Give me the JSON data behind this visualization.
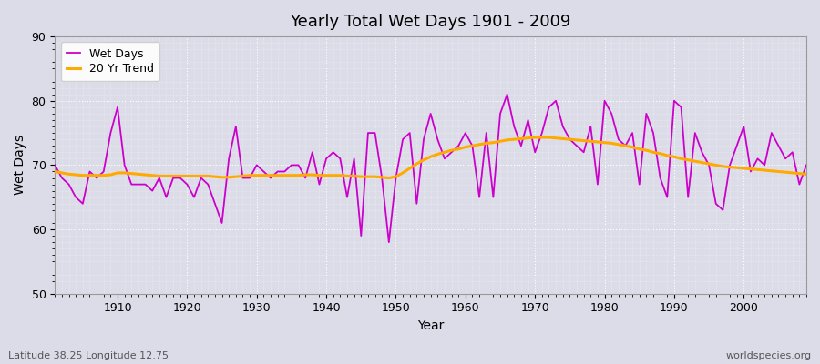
{
  "title": "Yearly Total Wet Days 1901 - 2009",
  "xlabel": "Year",
  "ylabel": "Wet Days",
  "subtitle_left": "Latitude 38.25 Longitude 12.75",
  "subtitle_right": "worldspecies.org",
  "line_color": "#cc00cc",
  "trend_color": "#ffaa00",
  "bg_color": "#dcdce8",
  "plot_bg_color": "#dcdce8",
  "years": [
    1901,
    1902,
    1903,
    1904,
    1905,
    1906,
    1907,
    1908,
    1909,
    1910,
    1911,
    1912,
    1913,
    1914,
    1915,
    1916,
    1917,
    1918,
    1919,
    1920,
    1921,
    1922,
    1923,
    1924,
    1925,
    1926,
    1927,
    1928,
    1929,
    1930,
    1931,
    1932,
    1933,
    1934,
    1935,
    1936,
    1937,
    1938,
    1939,
    1940,
    1941,
    1942,
    1943,
    1944,
    1945,
    1946,
    1947,
    1948,
    1949,
    1950,
    1951,
    1952,
    1953,
    1954,
    1955,
    1956,
    1957,
    1958,
    1959,
    1960,
    1961,
    1962,
    1963,
    1964,
    1965,
    1966,
    1967,
    1968,
    1969,
    1970,
    1971,
    1972,
    1973,
    1974,
    1975,
    1976,
    1977,
    1978,
    1979,
    1980,
    1981,
    1982,
    1983,
    1984,
    1985,
    1986,
    1987,
    1988,
    1989,
    1990,
    1991,
    1992,
    1993,
    1994,
    1995,
    1996,
    1997,
    1998,
    1999,
    2000,
    2001,
    2002,
    2003,
    2004,
    2005,
    2006,
    2007,
    2008,
    2009
  ],
  "wet_days": [
    70,
    68,
    67,
    65,
    64,
    69,
    68,
    69,
    75,
    79,
    70,
    67,
    67,
    67,
    66,
    68,
    65,
    68,
    68,
    67,
    65,
    68,
    67,
    64,
    61,
    71,
    76,
    68,
    68,
    70,
    69,
    68,
    69,
    69,
    70,
    70,
    68,
    72,
    67,
    71,
    72,
    71,
    65,
    71,
    59,
    75,
    75,
    68,
    58,
    68,
    74,
    75,
    64,
    74,
    78,
    74,
    71,
    72,
    73,
    75,
    73,
    65,
    75,
    65,
    78,
    81,
    76,
    73,
    77,
    72,
    75,
    79,
    80,
    76,
    74,
    73,
    72,
    76,
    67,
    80,
    78,
    74,
    73,
    75,
    67,
    78,
    75,
    68,
    65,
    80,
    79,
    65,
    75,
    72,
    70,
    64,
    63,
    70,
    73,
    76,
    69,
    71,
    70,
    75,
    73,
    71,
    72,
    67,
    70
  ],
  "trend_years": [
    1901,
    1902,
    1903,
    1904,
    1905,
    1906,
    1907,
    1908,
    1909,
    1910,
    1911,
    1912,
    1913,
    1914,
    1915,
    1916,
    1917,
    1918,
    1919,
    1920,
    1921,
    1922,
    1923,
    1924,
    1925,
    1926,
    1927,
    1928,
    1929,
    1930,
    1931,
    1932,
    1933,
    1934,
    1935,
    1936,
    1937,
    1938,
    1939,
    1940,
    1941,
    1942,
    1943,
    1944,
    1945,
    1946,
    1947,
    1948,
    1949,
    1950,
    1951,
    1952,
    1953,
    1954,
    1955,
    1956,
    1957,
    1958,
    1959,
    1960,
    1961,
    1962,
    1963,
    1964,
    1965,
    1966,
    1967,
    1968,
    1969,
    1970,
    1971,
    1972,
    1973,
    1974,
    1975,
    1976,
    1977,
    1978,
    1979,
    1980,
    1981,
    1982,
    1983,
    1984,
    1985,
    1986,
    1987,
    1988,
    1989,
    1990,
    1991,
    1992,
    1993,
    1994,
    1995,
    1996,
    1997,
    1998,
    1999,
    2000,
    2001,
    2002,
    2003,
    2004,
    2005,
    2006,
    2007,
    2008,
    2009
  ],
  "trend_values": [
    69.0,
    68.8,
    68.6,
    68.5,
    68.4,
    68.4,
    68.4,
    68.4,
    68.5,
    68.8,
    68.8,
    68.7,
    68.6,
    68.5,
    68.4,
    68.3,
    68.3,
    68.3,
    68.3,
    68.3,
    68.3,
    68.3,
    68.3,
    68.2,
    68.1,
    68.1,
    68.2,
    68.3,
    68.4,
    68.4,
    68.4,
    68.4,
    68.4,
    68.4,
    68.4,
    68.4,
    68.5,
    68.5,
    68.4,
    68.4,
    68.4,
    68.4,
    68.3,
    68.3,
    68.2,
    68.2,
    68.2,
    68.1,
    68.0,
    68.2,
    68.8,
    69.5,
    70.2,
    70.8,
    71.3,
    71.7,
    72.0,
    72.3,
    72.5,
    72.8,
    73.0,
    73.2,
    73.4,
    73.5,
    73.7,
    73.9,
    74.0,
    74.1,
    74.2,
    74.3,
    74.3,
    74.3,
    74.2,
    74.1,
    74.0,
    73.9,
    73.8,
    73.7,
    73.6,
    73.5,
    73.4,
    73.2,
    73.0,
    72.8,
    72.5,
    72.3,
    72.0,
    71.8,
    71.5,
    71.3,
    71.0,
    70.8,
    70.6,
    70.4,
    70.2,
    70.0,
    69.8,
    69.7,
    69.6,
    69.5,
    69.4,
    69.3,
    69.2,
    69.1,
    69.0,
    68.9,
    68.8,
    68.7,
    68.6
  ],
  "ylim": [
    50,
    90
  ],
  "xlim": [
    1901,
    2009
  ],
  "yticks": [
    50,
    60,
    70,
    80,
    90
  ],
  "xticks": [
    1910,
    1920,
    1930,
    1940,
    1950,
    1960,
    1970,
    1980,
    1990,
    2000
  ]
}
